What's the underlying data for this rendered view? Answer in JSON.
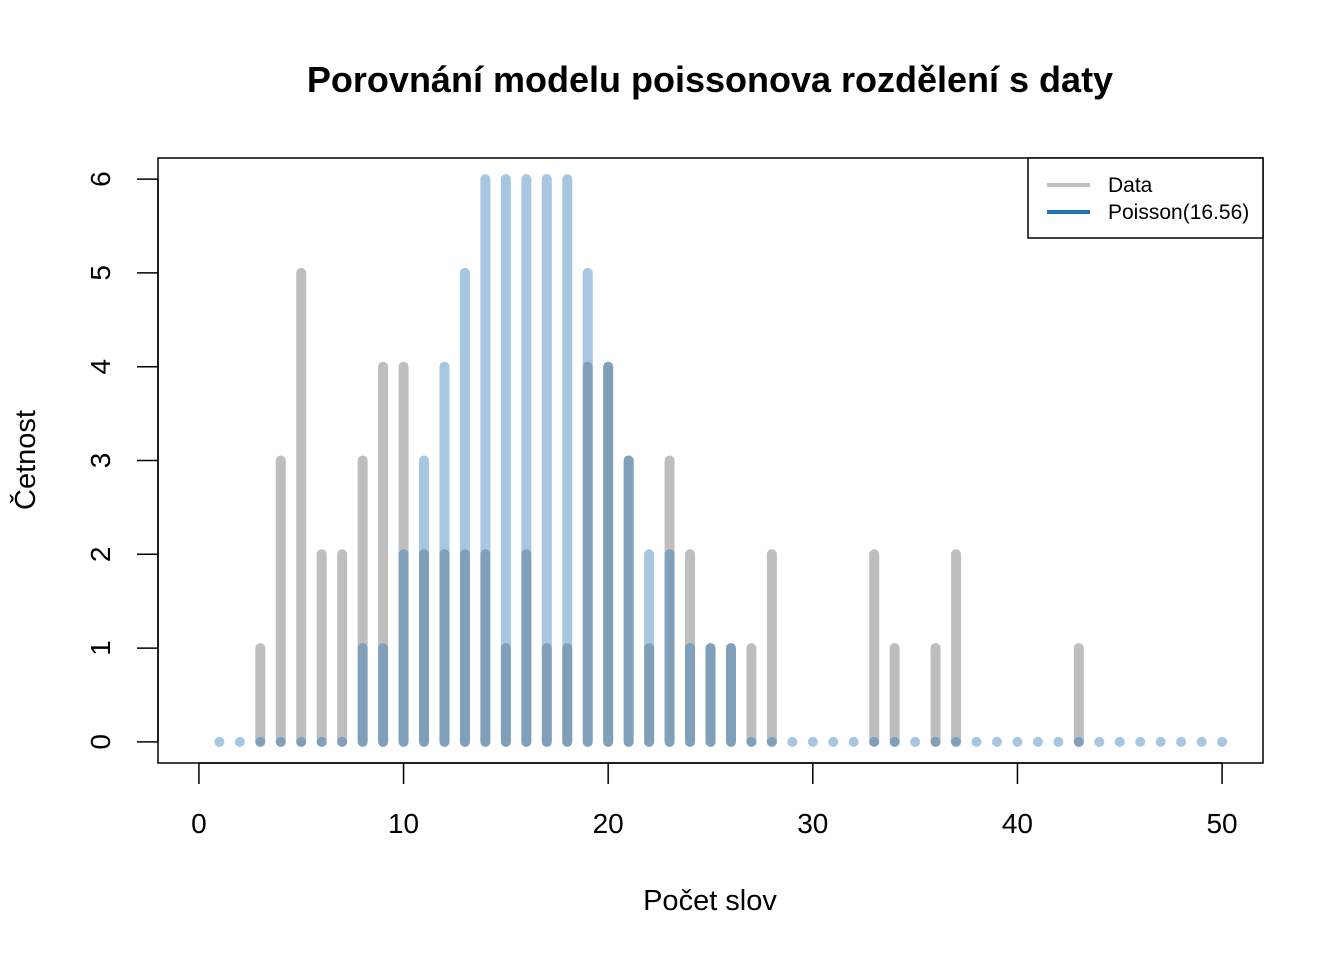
{
  "chart_data": {
    "type": "bar",
    "title": "Porovnání modelu poissonova rozdělení s daty",
    "xlabel": "Počet slov",
    "ylabel": "Četnost",
    "xlim": [
      -2,
      52
    ],
    "ylim": [
      -0.225,
      6.225
    ],
    "xticks": [
      0,
      10,
      20,
      30,
      40,
      50
    ],
    "yticks": [
      0,
      1,
      2,
      3,
      4,
      5,
      6
    ],
    "legend_position": "top-right",
    "series": [
      {
        "name": "Data",
        "color": "#bebebe",
        "x": [
          3,
          4,
          5,
          6,
          7,
          8,
          9,
          10,
          11,
          12,
          13,
          14,
          15,
          16,
          17,
          18,
          19,
          20,
          21,
          22,
          23,
          24,
          25,
          26,
          27,
          28,
          33,
          34,
          36,
          37,
          43
        ],
        "values": [
          1,
          3,
          5,
          2,
          2,
          3,
          4,
          4,
          2,
          2,
          2,
          2,
          1,
          2,
          1,
          1,
          4,
          4,
          3,
          1,
          3,
          2,
          1,
          1,
          1,
          2,
          2,
          1,
          1,
          2,
          1
        ]
      },
      {
        "name": "Poisson(16.56)",
        "color": "#2171b5",
        "x": [
          1,
          2,
          3,
          4,
          5,
          6,
          7,
          8,
          9,
          10,
          11,
          12,
          13,
          14,
          15,
          16,
          17,
          18,
          19,
          20,
          21,
          22,
          23,
          24,
          25,
          26,
          27,
          28,
          29,
          30,
          31,
          32,
          33,
          34,
          35,
          36,
          37,
          38,
          39,
          40,
          41,
          42,
          43,
          44,
          45,
          46,
          47,
          48,
          49,
          50
        ],
        "values": [
          0,
          0,
          0,
          0,
          0,
          0,
          0,
          1,
          1,
          2,
          3,
          4,
          5,
          6,
          6,
          6,
          6,
          6,
          5,
          4,
          3,
          2,
          2,
          1,
          1,
          1,
          0,
          0,
          0,
          0,
          0,
          0,
          0,
          0,
          0,
          0,
          0,
          0,
          0,
          0,
          0,
          0,
          0,
          0,
          0,
          0,
          0,
          0,
          0,
          0
        ]
      }
    ]
  }
}
